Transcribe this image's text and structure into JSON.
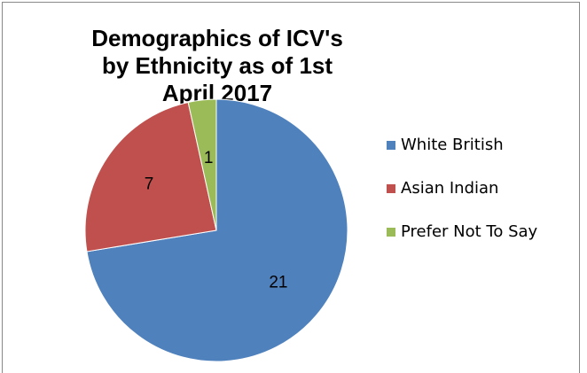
{
  "chart_data": {
    "type": "pie",
    "title": "Demographics of ICV's by Ethnicity as of 1st April 2017",
    "categories": [
      "White British",
      "Asian Indian",
      "Prefer Not To Say"
    ],
    "values": [
      21,
      7,
      1
    ],
    "colors": [
      "#4f81bd",
      "#c0504d",
      "#9bbb59"
    ],
    "legend": "right"
  }
}
